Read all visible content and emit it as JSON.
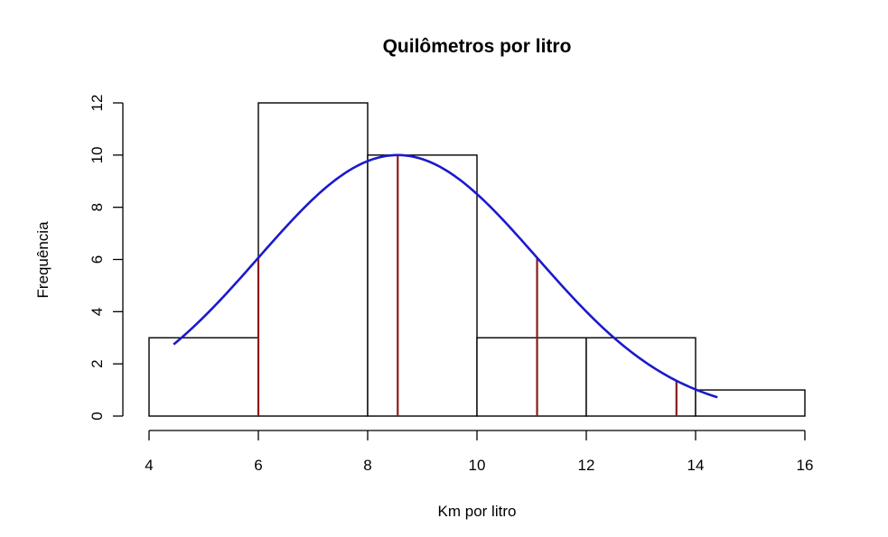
{
  "chart_data": {
    "type": "bar",
    "subtype": "histogram_with_normal_curve",
    "title": "Quilômetros por litro",
    "xlabel": "Km por litro",
    "ylabel": "Frequência",
    "xlim": [
      4,
      16
    ],
    "ylim": [
      0,
      12
    ],
    "x_ticks": [
      4,
      6,
      8,
      10,
      12,
      14,
      16
    ],
    "y_ticks": [
      0,
      2,
      4,
      6,
      8,
      10,
      12
    ],
    "grid": false,
    "legend": null,
    "bins": [
      {
        "start": 4,
        "end": 6,
        "count": 3
      },
      {
        "start": 6,
        "end": 8,
        "count": 12
      },
      {
        "start": 8,
        "end": 10,
        "count": 10
      },
      {
        "start": 10,
        "end": 12,
        "count": 3
      },
      {
        "start": 12,
        "end": 14,
        "count": 3
      },
      {
        "start": 14,
        "end": 16,
        "count": 1
      }
    ],
    "categories": [
      "4-6",
      "6-8",
      "8-10",
      "10-12",
      "12-14",
      "14-16"
    ],
    "values": [
      3,
      12,
      10,
      3,
      3,
      1
    ],
    "normal_curve": {
      "color": "#1a1acc",
      "mean": 8.55,
      "sd": 2.55,
      "peak_height": 10,
      "x_range": [
        4.45,
        14.4
      ]
    },
    "reference_lines": {
      "color": "#8b1a1a",
      "lines": [
        {
          "x": 6.0,
          "label": "mean - 1 sd"
        },
        {
          "x": 8.55,
          "label": "mean"
        },
        {
          "x": 11.1,
          "label": "mean + 1 sd"
        },
        {
          "x": 13.65,
          "label": "mean + 2 sd"
        }
      ]
    },
    "colors": {
      "bar_border": "#000000",
      "bar_fill": "#ffffff",
      "curve": "#1a1acc",
      "reference_line": "#8b1a1a"
    }
  }
}
